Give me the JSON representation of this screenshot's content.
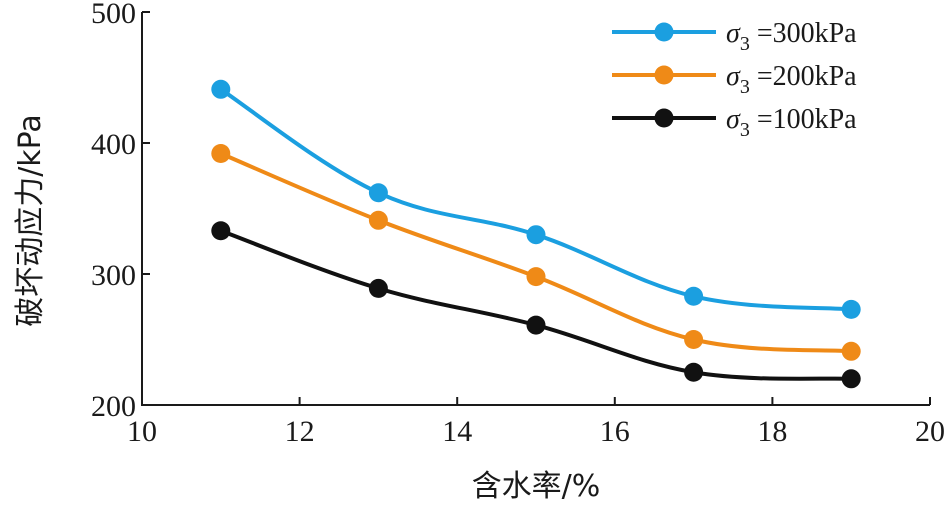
{
  "chart_data": {
    "type": "line",
    "xlabel": "含水率/%",
    "ylabel": "破坏动应力/kPa",
    "xlim": [
      10,
      20
    ],
    "ylim": [
      200,
      500
    ],
    "xticks": [
      10,
      12,
      14,
      16,
      18,
      20
    ],
    "yticks": [
      200,
      300,
      400,
      500
    ],
    "grid": false,
    "legend_position": "top-right",
    "x": [
      11,
      13,
      15,
      17,
      19
    ],
    "series": [
      {
        "name": "σ3 =300kPa",
        "name_symbol": "σ",
        "name_subscript": "3",
        "name_rest": " =300kPa",
        "color": "#1b9fe0",
        "values": [
          441,
          362,
          330,
          283,
          273
        ]
      },
      {
        "name": "σ3 =200kPa",
        "name_symbol": "σ",
        "name_subscript": "3",
        "name_rest": " =200kPa",
        "color": "#ef8a17",
        "values": [
          392,
          341,
          298,
          250,
          241
        ]
      },
      {
        "name": "σ3 =100kPa",
        "name_symbol": "σ",
        "name_subscript": "3",
        "name_rest": " =100kPa",
        "color": "#111111",
        "values": [
          333,
          289,
          261,
          225,
          220
        ]
      }
    ]
  }
}
